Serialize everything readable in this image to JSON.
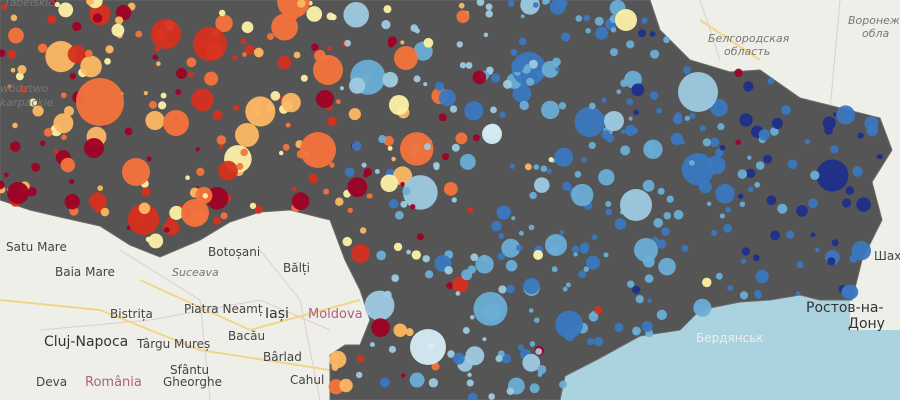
{
  "labels": {
    "poland_1": "wództwo",
    "poland_2": "karpackie",
    "poland_top": "Tabelskie",
    "satu_mare": "Satu Mare",
    "baia_mare": "Baia Mare",
    "suceava": "Suceava",
    "botosani": "Botoșani",
    "balti": "Bălți",
    "piatra_neamt": "Piatra Neamț",
    "bistrita": "Bistrița",
    "iasi": "Iași",
    "moldova": "Moldova",
    "cluj_napoca": "Cluj-Napoca",
    "targu_mures": "Târgu Mureș",
    "bacau": "Bacău",
    "barlad": "Bârlad",
    "deva": "Deva",
    "romania": "România",
    "sfantu_gheorghe_1": "Sfântu",
    "sfantu_gheorghe_2": "Gheorghe",
    "cahul": "Cahul",
    "belgorod_1": "Белгородская",
    "belgorod_2": "область",
    "voronezh_1": "Воронежская",
    "voronezh_2": "обла",
    "rostov_1": "Ростов-на-",
    "rostov_2": "Дону",
    "shakhty": "Шахт",
    "berdyansk": "Бердянськ"
  }
}
